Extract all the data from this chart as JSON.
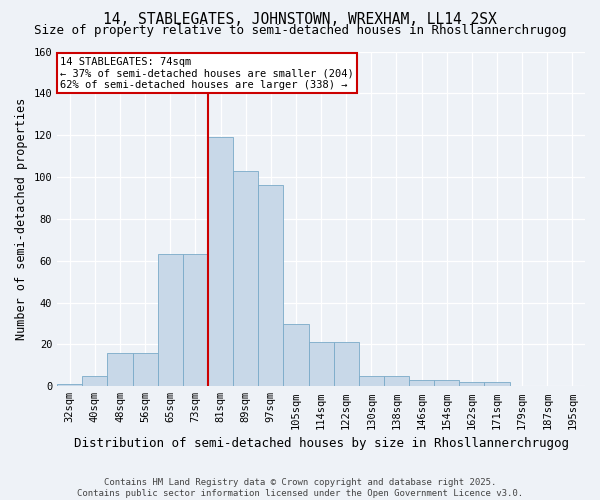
{
  "title": "14, STABLEGATES, JOHNSTOWN, WREXHAM, LL14 2SX",
  "subtitle": "Size of property relative to semi-detached houses in Rhosllannerchrugog",
  "xlabel": "Distribution of semi-detached houses by size in Rhosllannerchrugog",
  "ylabel": "Number of semi-detached properties",
  "categories": [
    "32sqm",
    "40sqm",
    "48sqm",
    "56sqm",
    "65sqm",
    "73sqm",
    "81sqm",
    "89sqm",
    "97sqm",
    "105sqm",
    "114sqm",
    "122sqm",
    "130sqm",
    "138sqm",
    "146sqm",
    "154sqm",
    "162sqm",
    "171sqm",
    "179sqm",
    "187sqm",
    "195sqm"
  ],
  "bar_heights": [
    1,
    5,
    16,
    16,
    63,
    63,
    119,
    103,
    96,
    30,
    21,
    21,
    5,
    5,
    3,
    3,
    2,
    2,
    0,
    0,
    0
  ],
  "bar_color": "#c8d8e8",
  "bar_edge_color": "#7aaac8",
  "vline_position": 6,
  "vline_color": "#cc0000",
  "box_color": "#cc0000",
  "annotation_line1": "14 STABLEGATES: 74sqm",
  "annotation_line2": "← 37% of semi-detached houses are smaller (204)",
  "annotation_line3": "62% of semi-detached houses are larger (338) →",
  "ylim": [
    0,
    160
  ],
  "yticks": [
    0,
    20,
    40,
    60,
    80,
    100,
    120,
    140,
    160
  ],
  "background_color": "#eef2f7",
  "footer": "Contains HM Land Registry data © Crown copyright and database right 2025.\nContains public sector information licensed under the Open Government Licence v3.0.",
  "title_fontsize": 10.5,
  "subtitle_fontsize": 9,
  "ylabel_fontsize": 8.5,
  "xlabel_fontsize": 9,
  "tick_fontsize": 7.5,
  "annotation_fontsize": 7.5,
  "footer_fontsize": 6.5
}
